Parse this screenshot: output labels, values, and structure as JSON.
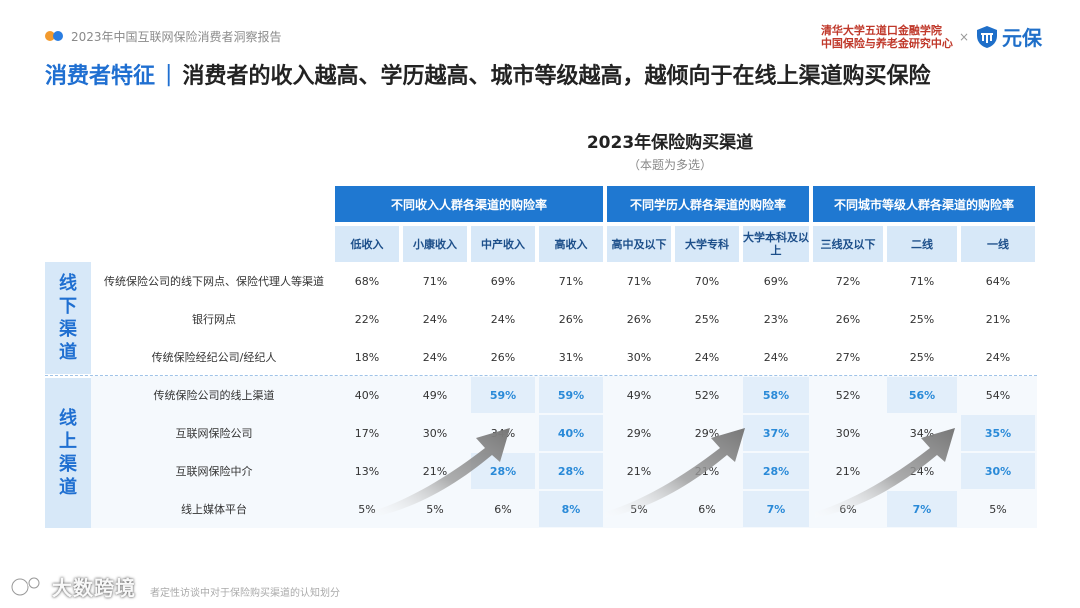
{
  "header": {
    "report_title": "2023年中国互联网保险消费者洞察报告",
    "partner_line1": "清华大学五道口金融学院",
    "partner_line2": "中国保险与养老金研究中心",
    "separator": "×",
    "brand_name": "元保"
  },
  "title": {
    "key": "消费者特征",
    "sep": "|",
    "main": "消费者的收入越高、学历越高、城市等级越高，越倾向于在线上渠道购买保险"
  },
  "chart": {
    "title": "2023年保险购买渠道",
    "subtitle": "（本题为多选）"
  },
  "table": {
    "groups": [
      "不同收入人群各渠道的购险率",
      "不同学历人群各渠道的购险率",
      "不同城市等级人群各渠道的购险率"
    ],
    "columns": [
      "低收入",
      "小康收入",
      "中产收入",
      "高收入",
      "高中及以下",
      "大学专科",
      "大学本科及以上",
      "三线及以下",
      "二线",
      "一线"
    ],
    "sections": [
      {
        "label": "线下渠道",
        "chars": [
          "线",
          "下",
          "渠",
          "道"
        ]
      },
      {
        "label": "线上渠道",
        "chars": [
          "线",
          "上",
          "渠",
          "道"
        ]
      }
    ],
    "rows": [
      {
        "label": "传统保险公司的线下网点、保险代理人等渠道",
        "values": [
          "68%",
          "71%",
          "69%",
          "71%",
          "71%",
          "70%",
          "69%",
          "72%",
          "71%",
          "64%"
        ],
        "highlight": [
          false,
          false,
          false,
          false,
          false,
          false,
          false,
          false,
          false,
          false
        ]
      },
      {
        "label": "银行网点",
        "values": [
          "22%",
          "24%",
          "24%",
          "26%",
          "26%",
          "25%",
          "23%",
          "26%",
          "25%",
          "21%"
        ],
        "highlight": [
          false,
          false,
          false,
          false,
          false,
          false,
          false,
          false,
          false,
          false
        ]
      },
      {
        "label": "传统保险经纪公司/经纪人",
        "values": [
          "18%",
          "24%",
          "26%",
          "31%",
          "30%",
          "24%",
          "24%",
          "27%",
          "25%",
          "24%"
        ],
        "highlight": [
          false,
          false,
          false,
          false,
          false,
          false,
          false,
          false,
          false,
          false
        ]
      },
      {
        "label": "传统保险公司的线上渠道",
        "values": [
          "40%",
          "49%",
          "59%",
          "59%",
          "49%",
          "52%",
          "58%",
          "52%",
          "56%",
          "54%"
        ],
        "highlight": [
          false,
          false,
          true,
          true,
          false,
          false,
          true,
          false,
          true,
          false
        ]
      },
      {
        "label": "互联网保险公司",
        "values": [
          "17%",
          "30%",
          "34%",
          "40%",
          "29%",
          "29%",
          "37%",
          "30%",
          "34%",
          "35%"
        ],
        "highlight": [
          false,
          false,
          false,
          true,
          false,
          false,
          true,
          false,
          false,
          true
        ]
      },
      {
        "label": "互联网保险中介",
        "values": [
          "13%",
          "21%",
          "28%",
          "28%",
          "21%",
          "21%",
          "28%",
          "21%",
          "24%",
          "30%"
        ],
        "highlight": [
          false,
          false,
          true,
          true,
          false,
          false,
          true,
          false,
          false,
          true
        ]
      },
      {
        "label": "线上媒体平台",
        "values": [
          "5%",
          "5%",
          "6%",
          "8%",
          "5%",
          "6%",
          "7%",
          "6%",
          "7%",
          "5%"
        ],
        "highlight": [
          false,
          false,
          false,
          true,
          false,
          false,
          true,
          false,
          true,
          false
        ]
      }
    ]
  },
  "footer": {
    "note": "者定性访谈中对于保险购买渠道的认知划分",
    "watermark": "大数跨境"
  },
  "colors": {
    "accent": "#1f78d1",
    "header_bg": "#d7e8f8",
    "highlight_text": "#2a8ad8",
    "arrow": "#8a8a8a"
  },
  "icons": {
    "brand": "shield-logo-icon",
    "watermark": "watermark-logo-icon",
    "trend": "trend-arrow-icon"
  }
}
